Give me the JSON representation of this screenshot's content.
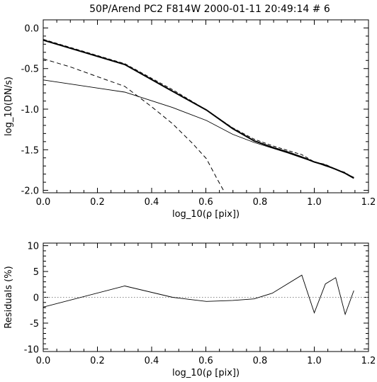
{
  "chart_data": [
    {
      "type": "line",
      "title": "50P/Arend PC2 F814W 2000-01-11 20:49:14 # 6",
      "xlabel": "log_10(ρ [pix])",
      "ylabel": "log_10(DN/s)",
      "xlim": [
        0.0,
        1.2
      ],
      "ylim": [
        -2.03,
        0.1
      ],
      "xticks": [
        "0.0",
        "0.2",
        "0.4",
        "0.6",
        "0.8",
        "1.0",
        "1.2"
      ],
      "yticks": [
        {
          "value": 0.0,
          "label": "0.0"
        },
        {
          "value": -0.5,
          "label": "-0.5"
        },
        {
          "value": -1.0,
          "label": "-1.0"
        },
        {
          "value": -1.5,
          "label": "-1.5"
        },
        {
          "value": -2.0,
          "label": "-2.0"
        }
      ],
      "series": [
        {
          "style": "thick",
          "x": [
            0.0,
            0.301,
            0.477,
            0.602,
            0.699,
            0.778,
            0.845,
            0.903,
            0.954,
            1.0,
            1.041,
            1.079,
            1.114,
            1.146
          ],
          "y": [
            -0.15,
            -0.45,
            -0.78,
            -1.01,
            -1.24,
            -1.39,
            -1.47,
            -1.53,
            -1.59,
            -1.65,
            -1.69,
            -1.74,
            -1.79,
            -1.85
          ]
        },
        {
          "style": "dashed",
          "x": [
            0.0,
            0.301,
            0.477,
            0.602,
            0.699,
            0.778,
            0.845,
            0.903,
            0.954,
            1.0,
            1.041,
            1.079,
            1.114,
            1.146
          ],
          "y": [
            -0.14,
            -0.44,
            -0.76,
            -1.01,
            -1.23,
            -1.37,
            -1.45,
            -1.51,
            -1.56,
            -1.65,
            -1.68,
            -1.74,
            -1.78,
            -1.85
          ]
        },
        {
          "style": "thin-dashed",
          "x": [
            0.0,
            0.1,
            0.2,
            0.301,
            0.4,
            0.477,
            0.55,
            0.602,
            0.64,
            0.67
          ],
          "y": [
            -0.38,
            -0.48,
            -0.6,
            -0.72,
            -0.97,
            -1.18,
            -1.42,
            -1.61,
            -1.85,
            -2.03
          ]
        },
        {
          "style": "thin",
          "x": [
            0.0,
            0.301,
            0.477,
            0.602,
            0.699,
            0.778,
            0.845,
            0.903,
            0.954,
            1.0,
            1.041,
            1.079,
            1.114,
            1.146
          ],
          "y": [
            -0.64,
            -0.79,
            -0.98,
            -1.14,
            -1.31,
            -1.41,
            -1.48,
            -1.54,
            -1.6,
            -1.65,
            -1.7,
            -1.74,
            -1.79,
            -1.84
          ]
        }
      ]
    },
    {
      "type": "line",
      "xlabel": "log_10(ρ [pix])",
      "ylabel": "Residuals (%)",
      "xlim": [
        0.0,
        1.2
      ],
      "ylim": [
        -10.5,
        10.5
      ],
      "xticks": [
        "0.0",
        "0.2",
        "0.4",
        "0.6",
        "0.8",
        "1.0",
        "1.2"
      ],
      "yticks": [
        {
          "value": 10,
          "label": "10"
        },
        {
          "value": 5,
          "label": "5"
        },
        {
          "value": 0,
          "label": "0"
        },
        {
          "value": -5,
          "label": "-5"
        },
        {
          "value": -10,
          "label": "-10"
        }
      ],
      "reference_line": 0,
      "series": [
        {
          "style": "thin",
          "x": [
            0.0,
            0.301,
            0.477,
            0.602,
            0.699,
            0.778,
            0.845,
            0.954,
            1.0,
            1.041,
            1.079,
            1.114,
            1.146
          ],
          "y": [
            -1.9,
            2.2,
            0.0,
            -0.8,
            -0.6,
            -0.3,
            0.8,
            4.3,
            -3.0,
            2.6,
            3.8,
            -3.3,
            1.3
          ]
        }
      ]
    }
  ]
}
